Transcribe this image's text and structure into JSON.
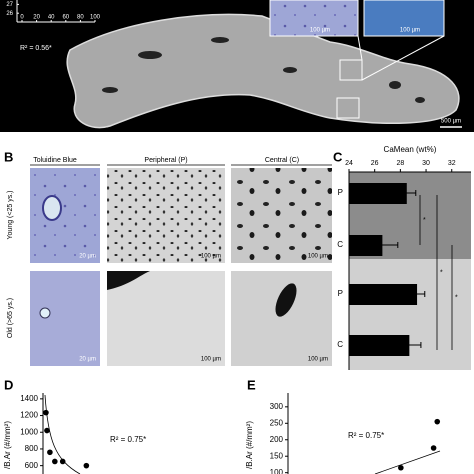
{
  "panel_labels": [
    "B",
    "C",
    "D",
    "E"
  ],
  "panel_a": {
    "scale_bars": [
      "100 µm",
      "100 µm",
      "500 µm"
    ]
  },
  "panel_b": {
    "columns": [
      "Toluidine Blue",
      "Peripheral (P)",
      "Central (C)"
    ],
    "rows": [
      "Young (<25 ys.)",
      "Old (>65 ys.)"
    ],
    "scale_bars": [
      [
        "20 µm",
        "100 µm",
        "100 µm"
      ],
      [
        "20 µm",
        "100 µm",
        "100 µm"
      ]
    ]
  },
  "chart_data": [
    {
      "type": "axis-fragment",
      "annotation": "R² = 0.56*",
      "xlim": [
        0,
        100
      ],
      "xticks": [
        0,
        20,
        40,
        60,
        80,
        100
      ],
      "ylim": [
        25,
        27.5
      ],
      "yticks": [
        26,
        27
      ]
    },
    {
      "type": "hbar",
      "title": "CaMean (wt%)",
      "categories": [
        "P",
        "C",
        "P",
        "C"
      ],
      "values": [
        28.5,
        26.6,
        29.3,
        28.7
      ],
      "errors": [
        0.7,
        1.2,
        0.6,
        0.9
      ],
      "xlim": [
        24,
        33.5
      ],
      "xticks": [
        24,
        26,
        28,
        30,
        32
      ],
      "color": "#000000",
      "significance": [
        "*",
        "*",
        "*"
      ]
    },
    {
      "type": "scatter",
      "y_label": "/B.Ar (#/mm²)",
      "annotation": "R² = 0.75*",
      "x": [
        1.5,
        2,
        3.5,
        6,
        10,
        22
      ],
      "values": [
        1235,
        1020,
        760,
        650,
        650,
        600
      ],
      "xlim": [
        0,
        100
      ],
      "ylim": [
        500,
        1470
      ],
      "yticks": [
        600,
        800,
        1000,
        1200,
        1400
      ],
      "color": "#000000"
    },
    {
      "type": "scatter",
      "y_label": "/B.Ar (#/mm²)",
      "annotation": "R² = 0.75*",
      "x": [
        62,
        80,
        82
      ],
      "values": [
        115,
        175,
        255
      ],
      "xlim": [
        0,
        100
      ],
      "ylim": [
        96,
        342
      ],
      "yticks": [
        100,
        150,
        200,
        250,
        300
      ],
      "color": "#000000"
    }
  ]
}
